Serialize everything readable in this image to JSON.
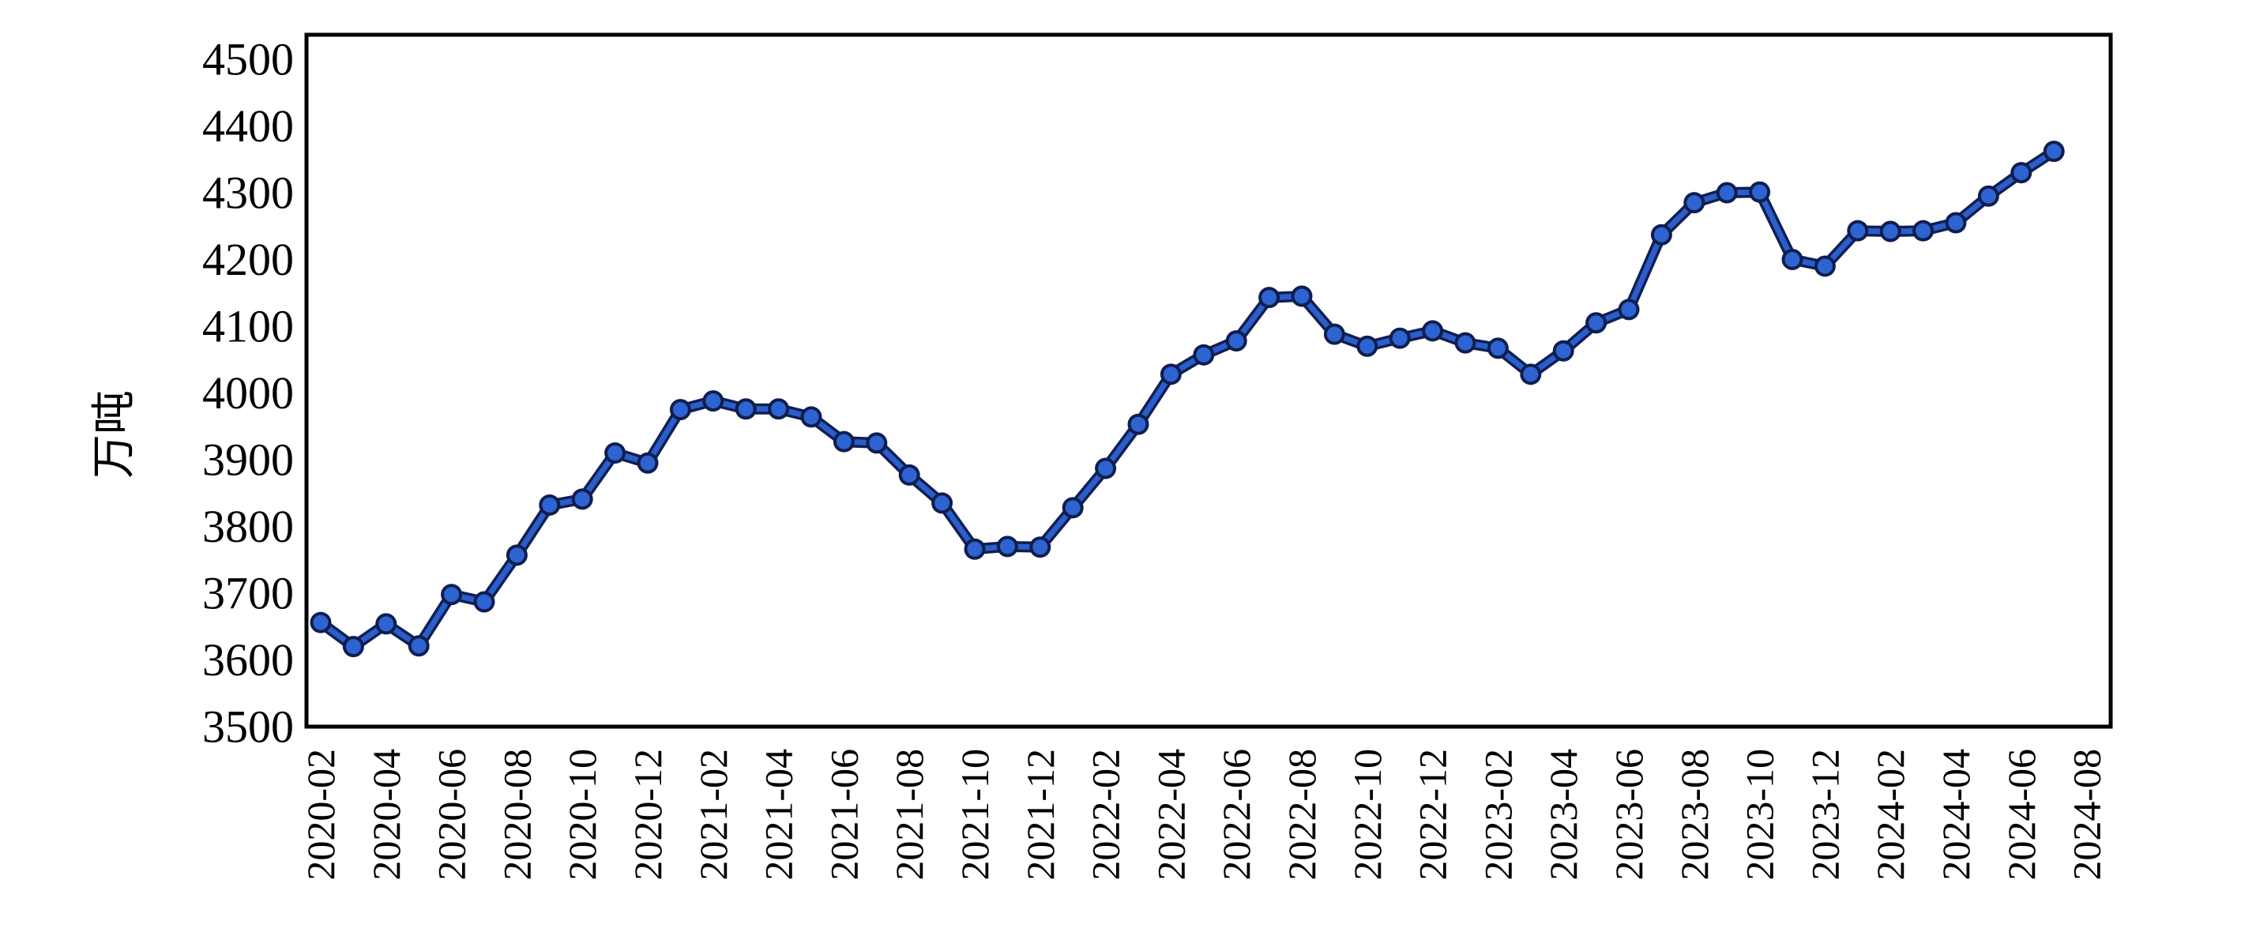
{
  "chart_data": {
    "type": "line",
    "title": "",
    "ylabel": "万吨",
    "xlabel": "",
    "legend": "none",
    "grid": false,
    "marker": "circle",
    "ylim": [
      3500,
      4540
    ],
    "yticks": [
      3500,
      3600,
      3700,
      3800,
      3900,
      4000,
      4100,
      4200,
      4300,
      4400,
      4500
    ],
    "xtick_labels": [
      "2020-02",
      "2020-04",
      "2020-06",
      "2020-08",
      "2020-10",
      "2020-12",
      "2021-02",
      "2021-04",
      "2021-06",
      "2021-08",
      "2021-10",
      "2021-12",
      "2022-02",
      "2022-04",
      "2022-06",
      "2022-08",
      "2022-10",
      "2022-12",
      "2023-02",
      "2023-04",
      "2023-06",
      "2023-08",
      "2023-10",
      "2023-12",
      "2024-02",
      "2024-04",
      "2024-06",
      "2024-08"
    ],
    "x": [
      "2020-02",
      "2020-03",
      "2020-04",
      "2020-05",
      "2020-06",
      "2020-07",
      "2020-08",
      "2020-09",
      "2020-10",
      "2020-11",
      "2020-12",
      "2021-01",
      "2021-02",
      "2021-03",
      "2021-04",
      "2021-05",
      "2021-06",
      "2021-07",
      "2021-08",
      "2021-09",
      "2021-10",
      "2021-11",
      "2021-12",
      "2022-01",
      "2022-02",
      "2022-03",
      "2022-04",
      "2022-05",
      "2022-06",
      "2022-07",
      "2022-08",
      "2022-09",
      "2022-10",
      "2022-11",
      "2022-12",
      "2023-01",
      "2023-02",
      "2023-03",
      "2023-04",
      "2023-05",
      "2023-06",
      "2023-07",
      "2023-08",
      "2023-09",
      "2023-10",
      "2023-11",
      "2023-12",
      "2024-01",
      "2024-02",
      "2024-03",
      "2024-04",
      "2024-05",
      "2024-06",
      "2024-07"
    ],
    "values": [
      3656,
      3620,
      3654,
      3621,
      3698,
      3687,
      3757,
      3832,
      3841,
      3910,
      3895,
      3975,
      3988,
      3976,
      3976,
      3964,
      3927,
      3925,
      3877,
      3835,
      3766,
      3770,
      3769,
      3828,
      3887,
      3953,
      4028,
      4057,
      4078,
      4143,
      4145,
      4088,
      4070,
      4082,
      4093,
      4075,
      4067,
      4028,
      4063,
      4105,
      4125,
      4237,
      4285,
      4300,
      4301,
      4200,
      4190,
      4243,
      4242,
      4243,
      4255,
      4295,
      4330,
      4362
    ],
    "colors": {
      "line_core": "#2b5ecb",
      "line_outline": "#101f52",
      "marker_fill": "#2e63d2",
      "marker_outline": "#0f1e4e",
      "axis": "#000000",
      "background": "#ffffff",
      "text": "#000000"
    }
  }
}
